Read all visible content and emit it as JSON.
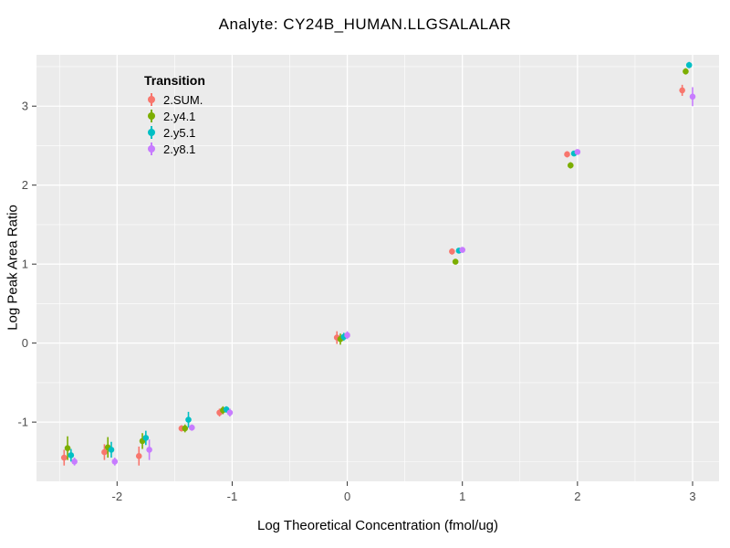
{
  "chart_data": {
    "type": "scatter",
    "title": "Analyte: CY24B_HUMAN.LLGSALALAR",
    "xlabel": "Log Theoretical Concentration (fmol/ug)",
    "ylabel": "Log Peak Area Ratio",
    "legend_title": "Transition",
    "legend_position": "top-left-inside",
    "panel_background": "#EBEBEB",
    "grid_color": "#FFFFFF",
    "grid": true,
    "tick_label_color": "#4D4D4D",
    "tick_mark_color": "#333333",
    "xlim": [
      -2.7,
      3.23
    ],
    "ylim": [
      -1.75,
      3.65
    ],
    "xticks": [
      -2,
      -1,
      0,
      1,
      2,
      3
    ],
    "yticks": [
      -1,
      0,
      1,
      2,
      3
    ],
    "xminor": [
      -2.5,
      -1.5,
      -0.5,
      0.5,
      1.5,
      2.5
    ],
    "yminor": [
      -1.5,
      -0.5,
      0.5,
      1.5,
      2.5,
      3.5
    ],
    "point_format": [
      "x",
      "y",
      "yerr"
    ],
    "series": [
      {
        "name": "2.SUM.",
        "color": "#F8766D",
        "points": [
          [
            -2.46,
            -1.45,
            0.1
          ],
          [
            -2.11,
            -1.38,
            0.1
          ],
          [
            -1.81,
            -1.43,
            0.12
          ],
          [
            -1.44,
            -1.08,
            0.04
          ],
          [
            -1.11,
            -0.88,
            0.05
          ],
          [
            -0.09,
            0.07,
            0.08
          ],
          [
            0.91,
            1.16,
            0.04
          ],
          [
            1.91,
            2.39,
            0.04
          ],
          [
            2.91,
            3.2,
            0.07
          ]
        ]
      },
      {
        "name": "2.y4.1",
        "color": "#7CAE00",
        "points": [
          [
            -2.43,
            -1.33,
            0.15
          ],
          [
            -2.08,
            -1.32,
            0.13
          ],
          [
            -1.78,
            -1.24,
            0.1
          ],
          [
            -1.41,
            -1.08,
            0.05
          ],
          [
            -1.08,
            -0.85,
            0.05
          ],
          [
            -0.06,
            0.05,
            0.07
          ],
          [
            0.94,
            1.03,
            0.03
          ],
          [
            1.94,
            2.25,
            0.04
          ],
          [
            2.94,
            3.44,
            0.04
          ]
        ]
      },
      {
        "name": "2.y5.1",
        "color": "#00BFC4",
        "points": [
          [
            -2.4,
            -1.42,
            0.08
          ],
          [
            -2.05,
            -1.35,
            0.1
          ],
          [
            -1.75,
            -1.2,
            0.09
          ],
          [
            -1.38,
            -0.97,
            0.1
          ],
          [
            -1.05,
            -0.84,
            0.04
          ],
          [
            -0.03,
            0.08,
            0.05
          ],
          [
            0.97,
            1.17,
            0.03
          ],
          [
            1.97,
            2.4,
            0.03
          ],
          [
            2.97,
            3.52,
            0.04
          ]
        ]
      },
      {
        "name": "2.y8.1",
        "color": "#C77CFF",
        "points": [
          [
            -2.37,
            -1.5,
            0.05
          ],
          [
            -2.02,
            -1.5,
            0.05
          ],
          [
            -1.72,
            -1.35,
            0.13
          ],
          [
            -1.35,
            -1.07,
            0.04
          ],
          [
            -1.02,
            -0.88,
            0.05
          ],
          [
            0.0,
            0.1,
            0.05
          ],
          [
            1.0,
            1.18,
            0.03
          ],
          [
            2.0,
            2.42,
            0.03
          ],
          [
            3.0,
            3.12,
            0.12
          ]
        ]
      }
    ]
  }
}
